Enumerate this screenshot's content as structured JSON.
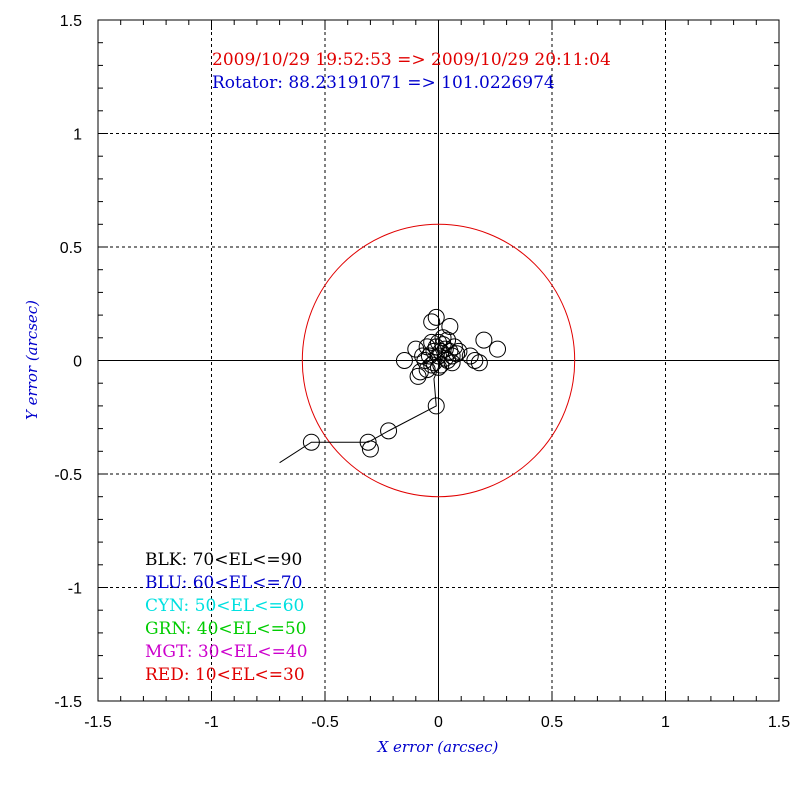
{
  "chart_data": {
    "type": "scatter",
    "title_lines": [
      {
        "text": "2009/10/29 19:52:53 => 2009/10/29 20:11:04",
        "color": "#e00000"
      },
      {
        "text": "Rotator: 88.23191071 => 101.0226974",
        "color": "#0000cc"
      }
    ],
    "xlabel": "X error (arcsec)",
    "ylabel": "Y error (arcsec)",
    "label_color": "#0000cc",
    "xlim": [
      -1.5,
      1.5
    ],
    "ylim": [
      -1.5,
      1.5
    ],
    "x_ticks": [
      {
        "value": -1.5,
        "label": "-1.5"
      },
      {
        "value": -1,
        "label": "-1"
      },
      {
        "value": -0.5,
        "label": "-0.5"
      },
      {
        "value": 0,
        "label": "0"
      },
      {
        "value": 0.5,
        "label": "0.5"
      },
      {
        "value": 1,
        "label": "1"
      },
      {
        "value": 1.5,
        "label": "1.5"
      }
    ],
    "y_ticks": [
      {
        "value": 1.5,
        "label": "1.5"
      },
      {
        "value": 1,
        "label": "1"
      },
      {
        "value": 0.5,
        "label": "0.5"
      },
      {
        "value": 0,
        "label": "0"
      },
      {
        "value": -0.5,
        "label": "-0.5"
      },
      {
        "value": -1,
        "label": "-1"
      },
      {
        "value": -1.5,
        "label": "-1.5"
      }
    ],
    "minor_tick_step": 0.1,
    "grid": "dotted at major ticks",
    "reference_circle": {
      "center": [
        0,
        0
      ],
      "radius": 0.6,
      "color": "#e00000"
    },
    "track_line": [
      [
        -0.7,
        -0.45
      ],
      [
        -0.56,
        -0.36
      ],
      [
        -0.31,
        -0.36
      ],
      [
        -0.22,
        -0.31
      ],
      [
        -0.01,
        -0.2
      ],
      [
        -0.02,
        -0.08
      ],
      [
        0.02,
        0.02
      ]
    ],
    "legend": [
      {
        "label": "BLK: 70<EL<=90",
        "color": "#000000"
      },
      {
        "label": "BLU: 60<EL<=70",
        "color": "#0000cc"
      },
      {
        "label": "CYN: 50<EL<=60",
        "color": "#00e0e0"
      },
      {
        "label": "GRN: 40<EL<=50",
        "color": "#00cc00"
      },
      {
        "label": "MGT: 30<EL<=40",
        "color": "#cc00cc"
      },
      {
        "label": "RED: 10<EL<=30",
        "color": "#e00000"
      }
    ],
    "series": [
      {
        "name": "BLK: 70<EL<=90",
        "color": "#000000",
        "points": [
          [
            -0.56,
            -0.36
          ],
          [
            -0.31,
            -0.36
          ],
          [
            -0.3,
            -0.39
          ],
          [
            -0.22,
            -0.31
          ],
          [
            -0.01,
            -0.2
          ],
          [
            -0.03,
            0.17
          ],
          [
            -0.01,
            0.19
          ],
          [
            0.05,
            0.15
          ],
          [
            0.2,
            0.09
          ],
          [
            0.26,
            0.05
          ],
          [
            0.14,
            0.02
          ],
          [
            0.16,
            0.0
          ],
          [
            0.18,
            -0.01
          ],
          [
            -0.15,
            0.0
          ],
          [
            -0.1,
            0.05
          ],
          [
            -0.08,
            -0.05
          ],
          [
            -0.09,
            -0.07
          ],
          [
            -0.05,
            -0.04
          ],
          [
            -0.06,
            0.0
          ],
          [
            -0.04,
            0.02
          ],
          [
            -0.02,
            -0.01
          ],
          [
            0.0,
            0.02
          ],
          [
            0.01,
            0.04
          ],
          [
            0.03,
            0.01
          ],
          [
            0.05,
            0.04
          ],
          [
            0.07,
            0.06
          ],
          [
            0.02,
            0.07
          ],
          [
            -0.03,
            0.08
          ],
          [
            0.04,
            0.0
          ],
          [
            0.08,
            0.03
          ],
          [
            0.0,
            -0.03
          ],
          [
            -0.02,
            0.04
          ],
          [
            0.02,
            0.1
          ],
          [
            0.06,
            0.02
          ],
          [
            -0.05,
            0.06
          ],
          [
            0.01,
            -0.02
          ],
          [
            0.04,
            0.09
          ],
          [
            -0.07,
            0.02
          ],
          [
            0.03,
            0.05
          ],
          [
            -0.01,
            0.06
          ],
          [
            0.09,
            0.04
          ],
          [
            0.06,
            -0.01
          ],
          [
            -0.03,
            -0.02
          ],
          [
            0.0,
            0.08
          ]
        ]
      }
    ]
  }
}
